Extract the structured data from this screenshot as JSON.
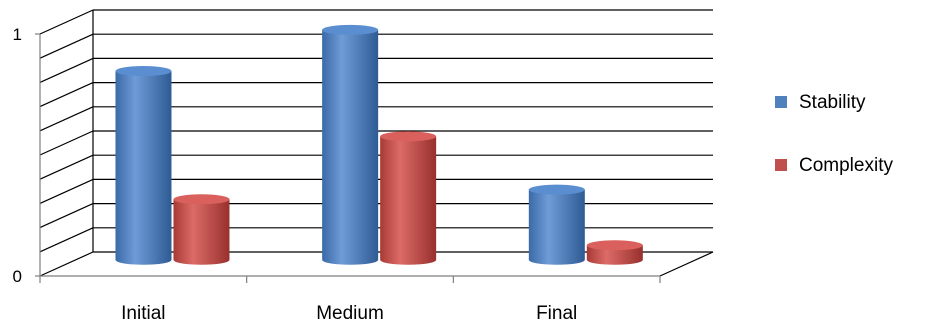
{
  "chart_data": {
    "type": "bar",
    "style": "3d-cylinder",
    "categories": [
      "Initial",
      "Medium",
      "Final"
    ],
    "series": [
      {
        "name": "Stability",
        "values": [
          0.78,
          0.95,
          0.29
        ],
        "color": "#4F81BD"
      },
      {
        "name": "Complexity",
        "values": [
          0.25,
          0.51,
          0.06
        ],
        "color": "#C0504D"
      }
    ],
    "ylim": [
      0,
      1
    ],
    "y_tick_labels": [
      "0",
      "1"
    ],
    "gridlines": true,
    "legend_position": "right"
  }
}
